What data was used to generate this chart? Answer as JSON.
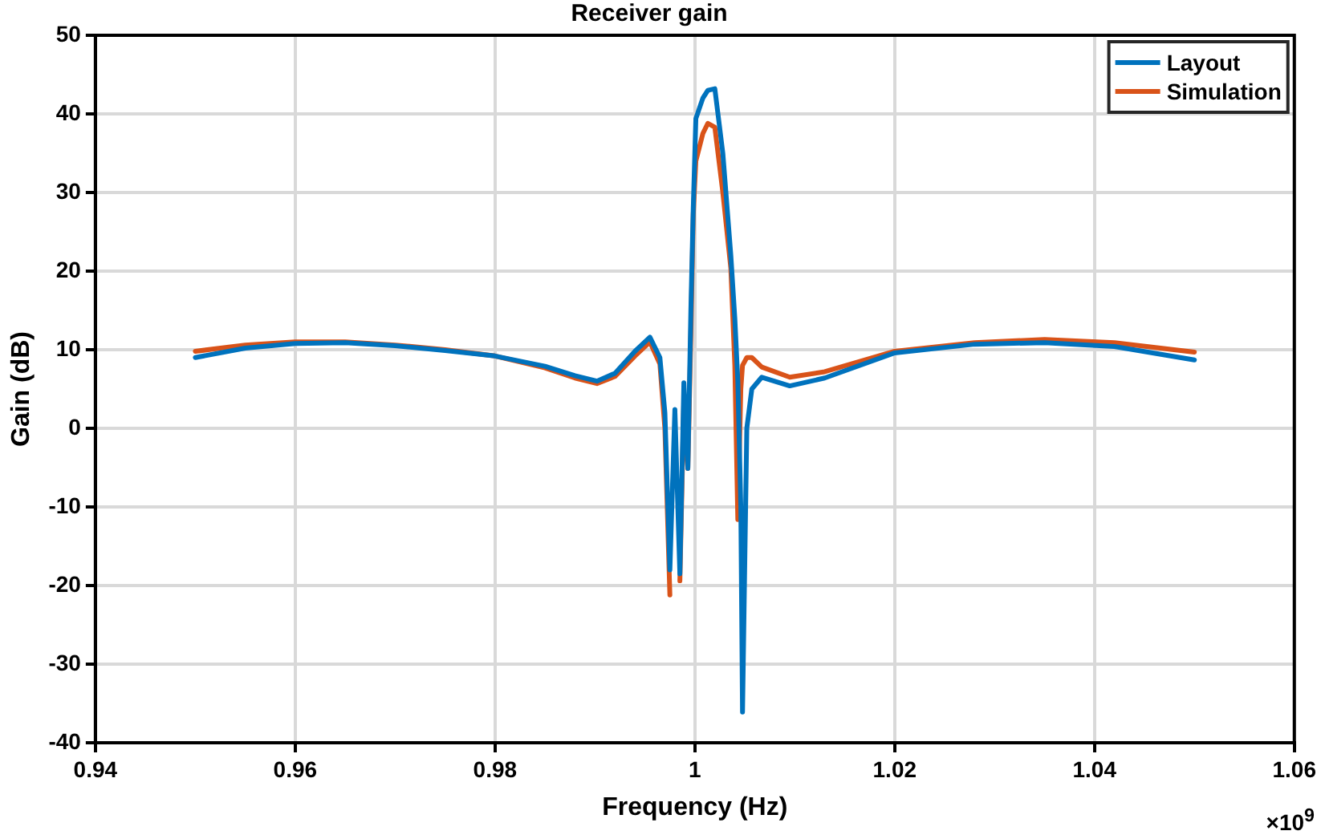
{
  "chart_data": {
    "type": "line",
    "title": "Receiver gain",
    "xlabel": "Frequency (Hz)",
    "ylabel": "Gain (dB)",
    "annotations": [
      "×10$^{9}$"
    ],
    "x": [
      0.95,
      0.955,
      0.96,
      0.965,
      0.97,
      0.975,
      0.98,
      0.985,
      0.988,
      0.9902,
      0.992,
      0.994,
      0.9955,
      0.9965,
      0.997,
      0.9975,
      0.998,
      0.9985,
      0.9989,
      0.9993,
      0.9996,
      0.99984,
      1.0001,
      1.0008,
      1.0013,
      1.002,
      1.0028,
      1.0036,
      1.004,
      1.0043,
      1.0046,
      1.00477,
      1.0052,
      1.0057,
      1.0067,
      1.0095,
      1.013,
      1.02,
      1.028,
      1.035,
      1.042,
      1.05
    ],
    "series": [
      {
        "name": "Layout",
        "color": "#0072bd",
        "values": [
          9.0,
          10.2,
          10.8,
          10.9,
          10.5,
          9.9,
          9.2,
          7.9,
          6.7,
          6.0,
          7.0,
          9.8,
          11.6,
          9.0,
          2.0,
          -18.0,
          2.4,
          -18.5,
          5.8,
          -5.1,
          15,
          28,
          39.4,
          42,
          43,
          43.2,
          35,
          22,
          14,
          6,
          -10,
          -36.1,
          0,
          5,
          6.5,
          5.4,
          6.4,
          9.6,
          10.7,
          10.9,
          10.4,
          8.7
        ]
      },
      {
        "name": "Simulation",
        "color": "#d95319",
        "values": [
          9.8,
          10.6,
          11.0,
          11.0,
          10.6,
          10.0,
          9.2,
          7.7,
          6.4,
          5.7,
          6.6,
          9.2,
          11.0,
          8.2,
          0.0,
          -21.2,
          null,
          -19.4,
          3.5,
          -5.1,
          12,
          27.2,
          34,
          37.5,
          38.8,
          38.3,
          30,
          20.4,
          8,
          -11.6,
          5,
          8,
          9.0,
          9.0,
          7.8,
          6.5,
          7.2,
          9.8,
          10.9,
          11.3,
          10.9,
          9.7
        ]
      }
    ],
    "xlim": [
      0.94,
      1.06
    ],
    "xticks": [
      0.94,
      0.96,
      0.98,
      1,
      1.02,
      1.04,
      1.06
    ],
    "ylim": [
      -40,
      50
    ],
    "yticks": [
      -40,
      -30,
      -20,
      -10,
      0,
      10,
      20,
      30,
      40,
      50
    ],
    "grid": true,
    "legend": "top right",
    "marker": "none",
    "line_style": "solid"
  }
}
